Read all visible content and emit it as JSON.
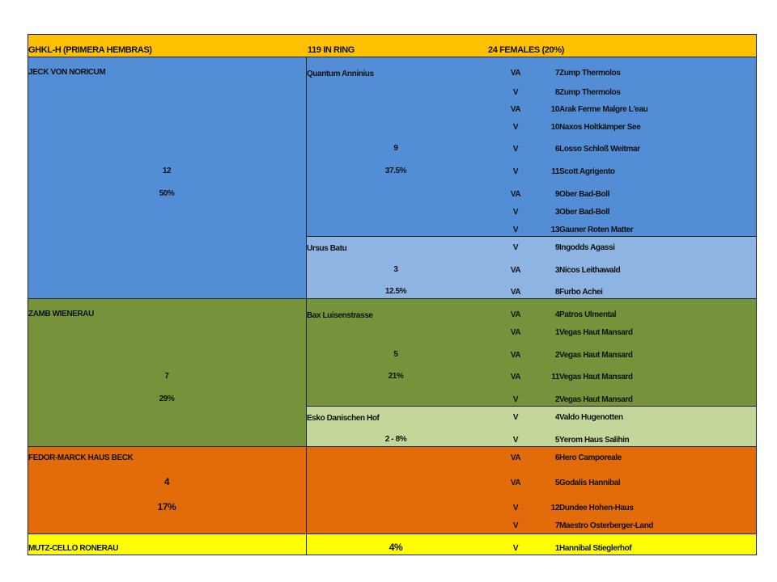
{
  "header": {
    "col1": "GHKL-H (PRIMERA HEMBRAS)",
    "col2": "119 IN RING",
    "col3": "24 FEMALES (20%)"
  },
  "colors": {
    "header": "#ffc000",
    "blue_dark": "#538dd5",
    "blue_light": "#8db4e2",
    "green_dark": "#76933c",
    "green_light": "#c4d79b",
    "orange": "#e26b0a",
    "yellow": "#ffff00"
  },
  "groups": [
    {
      "sire": "JECK VON NORICUM",
      "count": "12",
      "percent": "50%",
      "subgroups": [
        {
          "name": "Quantum Anninius",
          "count": "9",
          "percent": "37.5%",
          "rows": [
            {
              "code": "VA",
              "num": "7",
              "name": "Zump Thermolos"
            },
            {
              "code": "V",
              "num": "8",
              "name": "Zump Thermolos"
            },
            {
              "code": "VA",
              "num": "10",
              "name": "Arak Ferme Malgre L'eau"
            },
            {
              "code": "V",
              "num": "10",
              "name": "Naxos Holtkämper See"
            },
            {
              "code": "V",
              "num": "6",
              "name": "Losso Schloß Weitmar"
            },
            {
              "code": "V",
              "num": "11",
              "name": "Scott Agrigento"
            },
            {
              "code": "VA",
              "num": "9",
              "name": "Ober Bad-Boll"
            },
            {
              "code": "V",
              "num": "3",
              "name": "Ober Bad-Boll"
            },
            {
              "code": "V",
              "num": "13",
              "name": "Gauner Roten Matter"
            }
          ]
        },
        {
          "name": "Ursus Batu",
          "count": "3",
          "percent": "12.5%",
          "rows": [
            {
              "code": "V",
              "num": "9",
              "name": "Ingodds Agassi"
            },
            {
              "code": "VA",
              "num": "3",
              "name": "Nicos Leithawald"
            },
            {
              "code": "VA",
              "num": "8",
              "name": "Furbo Achei"
            }
          ]
        }
      ]
    },
    {
      "sire": "ZAMB WIENERAU",
      "count": "7",
      "percent": "29%",
      "subgroups": [
        {
          "name": "Bax Luisenstrasse",
          "count": "5",
          "percent": "21%",
          "rows": [
            {
              "code": "VA",
              "num": "4",
              "name": "Patros Ulmental"
            },
            {
              "code": "VA",
              "num": "1",
              "name": "Vegas Haut Mansard"
            },
            {
              "code": "VA",
              "num": "2",
              "name": "Vegas Haut Mansard"
            },
            {
              "code": "VA",
              "num": "11",
              "name": "Vegas Haut Mansard"
            },
            {
              "code": "V",
              "num": "2",
              "name": "Vegas Haut Mansard"
            }
          ]
        },
        {
          "name": "Esko Danischen Hof",
          "count_percent": "2 - 8%",
          "rows": [
            {
              "code": "V",
              "num": "4",
              "name": "Valdo Hugenotten"
            },
            {
              "code": "V",
              "num": "5",
              "name": "Yerom Haus Salihin"
            }
          ]
        }
      ]
    },
    {
      "sire": "FEDOR-MARCK HAUS BECK",
      "count": "4",
      "percent": "17%",
      "rows": [
        {
          "code": "VA",
          "num": "6",
          "name": "Hero Camporeale"
        },
        {
          "code": "VA",
          "num": "5",
          "name": "Godalis Hannibal"
        },
        {
          "code": "V",
          "num": "12",
          "name": "Dundee Hohen-Haus"
        },
        {
          "code": "V",
          "num": "7",
          "name": "Maestro Osterberger-Land"
        }
      ]
    },
    {
      "sire": "MUTZ-CELLO RONERAU",
      "percent": "4%",
      "rows": [
        {
          "code": "V",
          "num": "1",
          "name": "Hannibal Stieglerhof"
        }
      ]
    }
  ]
}
